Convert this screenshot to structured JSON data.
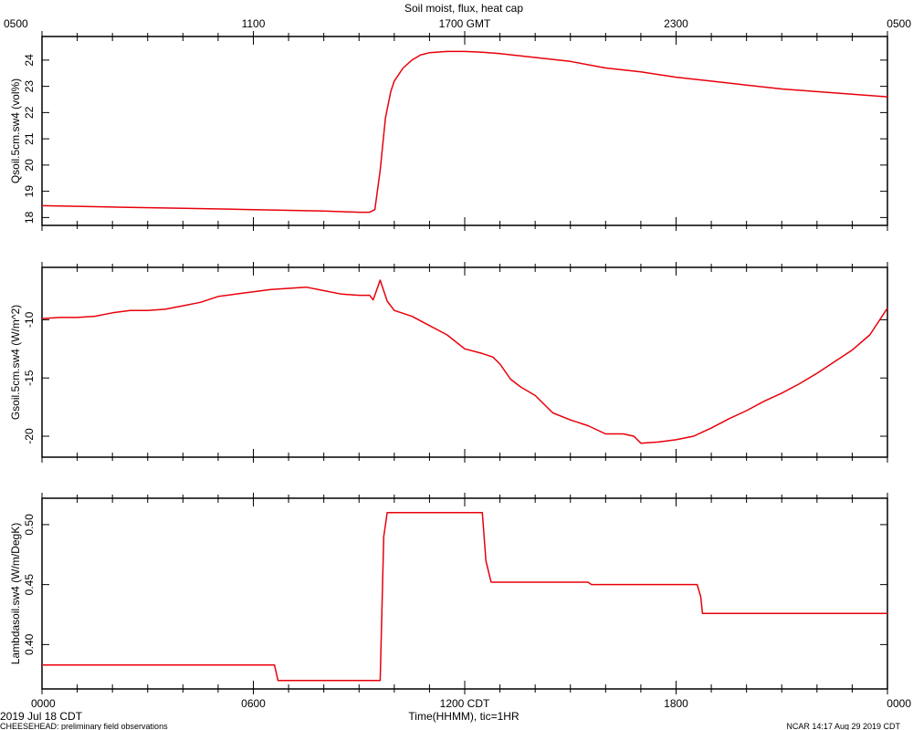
{
  "title": "Soil moist, flux, heat cap",
  "top_axis": {
    "ticks": [
      {
        "label": "0500",
        "hour": 0
      },
      {
        "label": "1100",
        "hour": 6
      },
      {
        "label": "1700 GMT",
        "hour": 12
      },
      {
        "label": "2300",
        "hour": 18
      },
      {
        "label": "0500",
        "hour": 24
      }
    ]
  },
  "bottom_axis": {
    "ticks": [
      {
        "label": "0000",
        "hour": 0
      },
      {
        "label": "0600",
        "hour": 6
      },
      {
        "label": "1200 CDT",
        "hour": 12
      },
      {
        "label": "1800",
        "hour": 18
      },
      {
        "label": "0000",
        "hour": 24
      }
    ],
    "xlabel": "Time(HHMM), tic=1HR",
    "date_label": "2019 Jul 18 CDT"
  },
  "footer": {
    "left": "CHEESEHEAD: preliminary field observations",
    "right": "NCAR 14:17 Aug 29 2019 CDT"
  },
  "colors": {
    "series": "#e8000b",
    "axes": "#000000"
  },
  "chart_data": [
    {
      "type": "line",
      "ylabel": "Qsoil.5cm.sw4 (vol%)",
      "xlim": [
        0,
        24
      ],
      "ylim": [
        17.7,
        24.9
      ],
      "yticks": [
        18,
        19,
        20,
        21,
        22,
        23,
        24
      ],
      "series": [
        {
          "x": [
            0,
            2,
            4,
            6,
            8,
            9,
            9.3,
            9.45,
            9.6,
            9.75,
            9.9,
            10.0,
            10.25,
            10.5,
            10.75,
            11.0,
            11.5,
            12,
            12.5,
            13,
            14,
            15,
            16,
            17,
            18,
            19,
            20,
            21,
            22,
            23,
            24
          ],
          "y": [
            18.45,
            18.4,
            18.35,
            18.3,
            18.25,
            18.2,
            18.2,
            18.3,
            19.8,
            21.8,
            22.8,
            23.2,
            23.7,
            24.0,
            24.2,
            24.28,
            24.33,
            24.33,
            24.3,
            24.25,
            24.1,
            23.95,
            23.7,
            23.55,
            23.35,
            23.2,
            23.05,
            22.9,
            22.8,
            22.7,
            22.6
          ]
        }
      ]
    },
    {
      "type": "line",
      "ylabel": "Gsoil.5cm.sw4 (W/m^2)",
      "xlim": [
        0,
        24
      ],
      "ylim": [
        -21.8,
        -5.5
      ],
      "yticks": [
        -10,
        -15,
        -20
      ],
      "series": [
        {
          "x": [
            0,
            0.5,
            1,
            1.5,
            2,
            2.5,
            3,
            3.5,
            4,
            4.5,
            5,
            5.5,
            6,
            6.5,
            7,
            7.5,
            8,
            8.5,
            9,
            9.3,
            9.4,
            9.6,
            9.8,
            10,
            10.5,
            11,
            11.5,
            12,
            12.5,
            12.8,
            13,
            13.3,
            13.6,
            14,
            14.5,
            15,
            15.5,
            16,
            16.5,
            16.8,
            17,
            17.5,
            18,
            18.5,
            19,
            19.5,
            20,
            20.5,
            21,
            21.5,
            22,
            22.5,
            23,
            23.5,
            24
          ],
          "y": [
            -9.9,
            -9.8,
            -9.8,
            -9.7,
            -9.4,
            -9.2,
            -9.2,
            -9.1,
            -8.8,
            -8.5,
            -8.0,
            -7.8,
            -7.6,
            -7.4,
            -7.3,
            -7.2,
            -7.5,
            -7.8,
            -7.9,
            -7.9,
            -8.3,
            -6.6,
            -8.4,
            -9.2,
            -9.7,
            -10.5,
            -11.3,
            -12.5,
            -12.9,
            -13.2,
            -13.8,
            -15.1,
            -15.8,
            -16.5,
            -18.0,
            -18.6,
            -19.1,
            -19.8,
            -19.8,
            -20.0,
            -20.6,
            -20.5,
            -20.3,
            -20.0,
            -19.3,
            -18.5,
            -17.8,
            -17.0,
            -16.3,
            -15.5,
            -14.6,
            -13.6,
            -12.6,
            -11.3,
            -9.0
          ]
        }
      ]
    },
    {
      "type": "line",
      "ylabel": "Lambdasoil.sw4 (W/m/DegK)",
      "xlim": [
        0,
        24
      ],
      "ylim": [
        0.363,
        0.522
      ],
      "yticks": [
        0.4,
        0.45,
        0.5
      ],
      "series": [
        {
          "x": [
            0,
            6.6,
            6.7,
            9.6,
            9.7,
            9.8,
            12.5,
            12.6,
            12.75,
            15.5,
            15.6,
            18.6,
            18.7,
            18.75,
            24
          ],
          "y": [
            0.383,
            0.383,
            0.37,
            0.37,
            0.49,
            0.51,
            0.51,
            0.47,
            0.452,
            0.452,
            0.45,
            0.45,
            0.44,
            0.426,
            0.426
          ]
        }
      ]
    }
  ]
}
